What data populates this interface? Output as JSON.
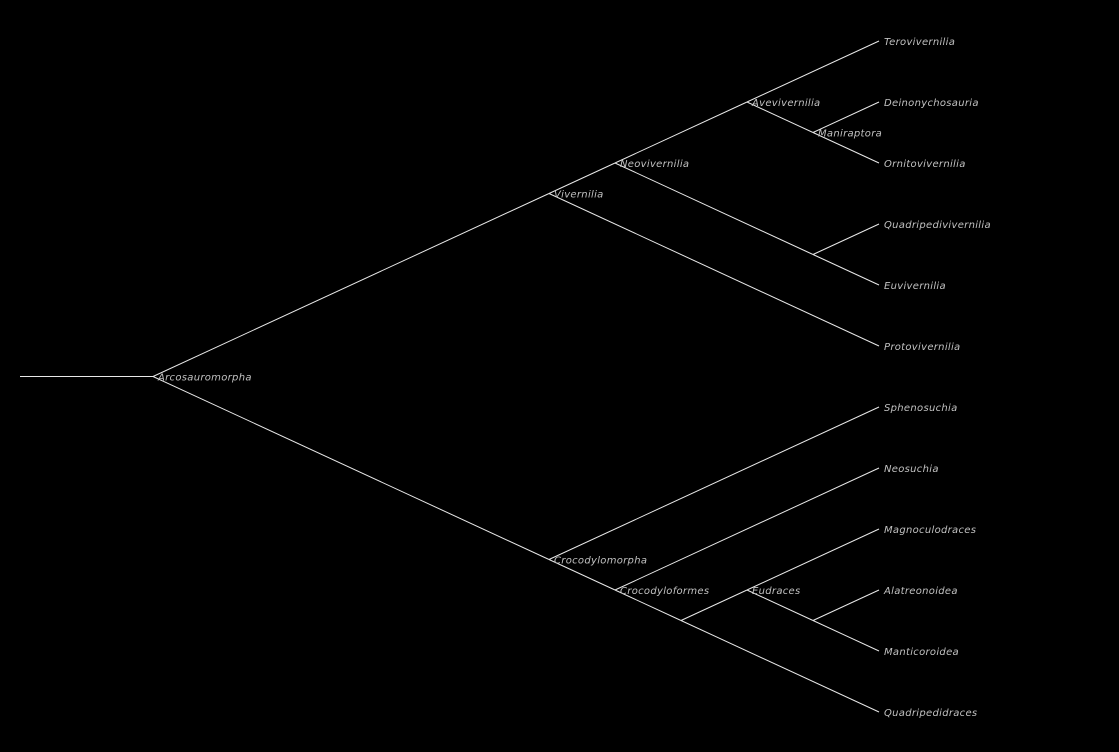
{
  "tree": {
    "line_color": "#e8e8e8",
    "label_color": "#c0c0c0",
    "background": "#000000",
    "root": {
      "label": "Arcosauromorpha",
      "children": [
        {
          "label": "Vivernilia",
          "children": [
            {
              "label": "Neovivernilia",
              "children": [
                {
                  "label": "Avevivernilia",
                  "children": [
                    {
                      "label": "Terovivernilia"
                    },
                    {
                      "label": "Maniraptora",
                      "children": [
                        {
                          "label": "Deinonychosauria"
                        },
                        {
                          "label": "Ornitovivernilia"
                        }
                      ]
                    }
                  ]
                },
                {
                  "label": "",
                  "children": [
                    {
                      "label": "Quadripedivivernilia"
                    },
                    {
                      "label": "Euvivernilia"
                    }
                  ]
                }
              ]
            },
            {
              "label": "Protovivernilia"
            }
          ]
        },
        {
          "label": "Crocodylomorpha",
          "children": [
            {
              "label": "Sphenosuchia"
            },
            {
              "label": "Crocodyloformes",
              "children": [
                {
                  "label": "Neosuchia"
                },
                {
                  "label": "",
                  "children": [
                    {
                      "label": "Eudraces",
                      "children": [
                        {
                          "label": "Magnoculodraces"
                        },
                        {
                          "label": "",
                          "children": [
                            {
                              "label": "Alatreonoidea"
                            },
                            {
                              "label": "Manticoroidea"
                            }
                          ]
                        }
                      ]
                    },
                    {
                      "label": "Quadripedidraces"
                    }
                  ]
                }
              ]
            }
          ]
        }
      ]
    }
  }
}
